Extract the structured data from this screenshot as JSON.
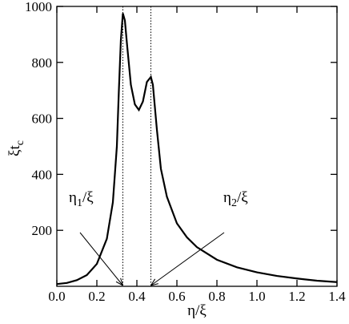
{
  "chart_data": {
    "type": "line",
    "xlabel": "η/ξ",
    "ylabel": {
      "base": "ξt",
      "sub": "c"
    },
    "x": [
      0,
      0.05,
      0.1,
      0.15,
      0.2,
      0.25,
      0.28,
      0.3,
      0.31,
      0.32,
      0.33,
      0.34,
      0.35,
      0.37,
      0.39,
      0.41,
      0.43,
      0.45,
      0.47,
      0.48,
      0.5,
      0.52,
      0.55,
      0.6,
      0.65,
      0.7,
      0.8,
      0.9,
      1.0,
      1.1,
      1.2,
      1.3,
      1.4
    ],
    "series": [
      {
        "color": "#000000",
        "values": [
          8,
          12,
          22,
          40,
          80,
          170,
          300,
          500,
          700,
          880,
          975,
          950,
          870,
          720,
          650,
          630,
          660,
          730,
          748,
          720,
          560,
          420,
          320,
          225,
          175,
          140,
          95,
          68,
          50,
          37,
          28,
          20,
          15
        ]
      }
    ],
    "xlim": [
      0,
      1.4
    ],
    "ylim": [
      0,
      1000
    ],
    "xticks": [
      {
        "value": 0,
        "label": "0.0"
      },
      0.2,
      0.4,
      0.6,
      0.8,
      {
        "value": 1,
        "label": "1.0"
      },
      1.2,
      1.4
    ],
    "yticks": [
      200,
      400,
      600,
      800,
      1000
    ],
    "vlines": [
      0.33,
      0.47
    ],
    "annotations": [
      {
        "base": "η",
        "sub": "1",
        "rest": "/ξ"
      },
      {
        "base": "η",
        "sub": "2",
        "rest": "/ξ"
      }
    ]
  }
}
